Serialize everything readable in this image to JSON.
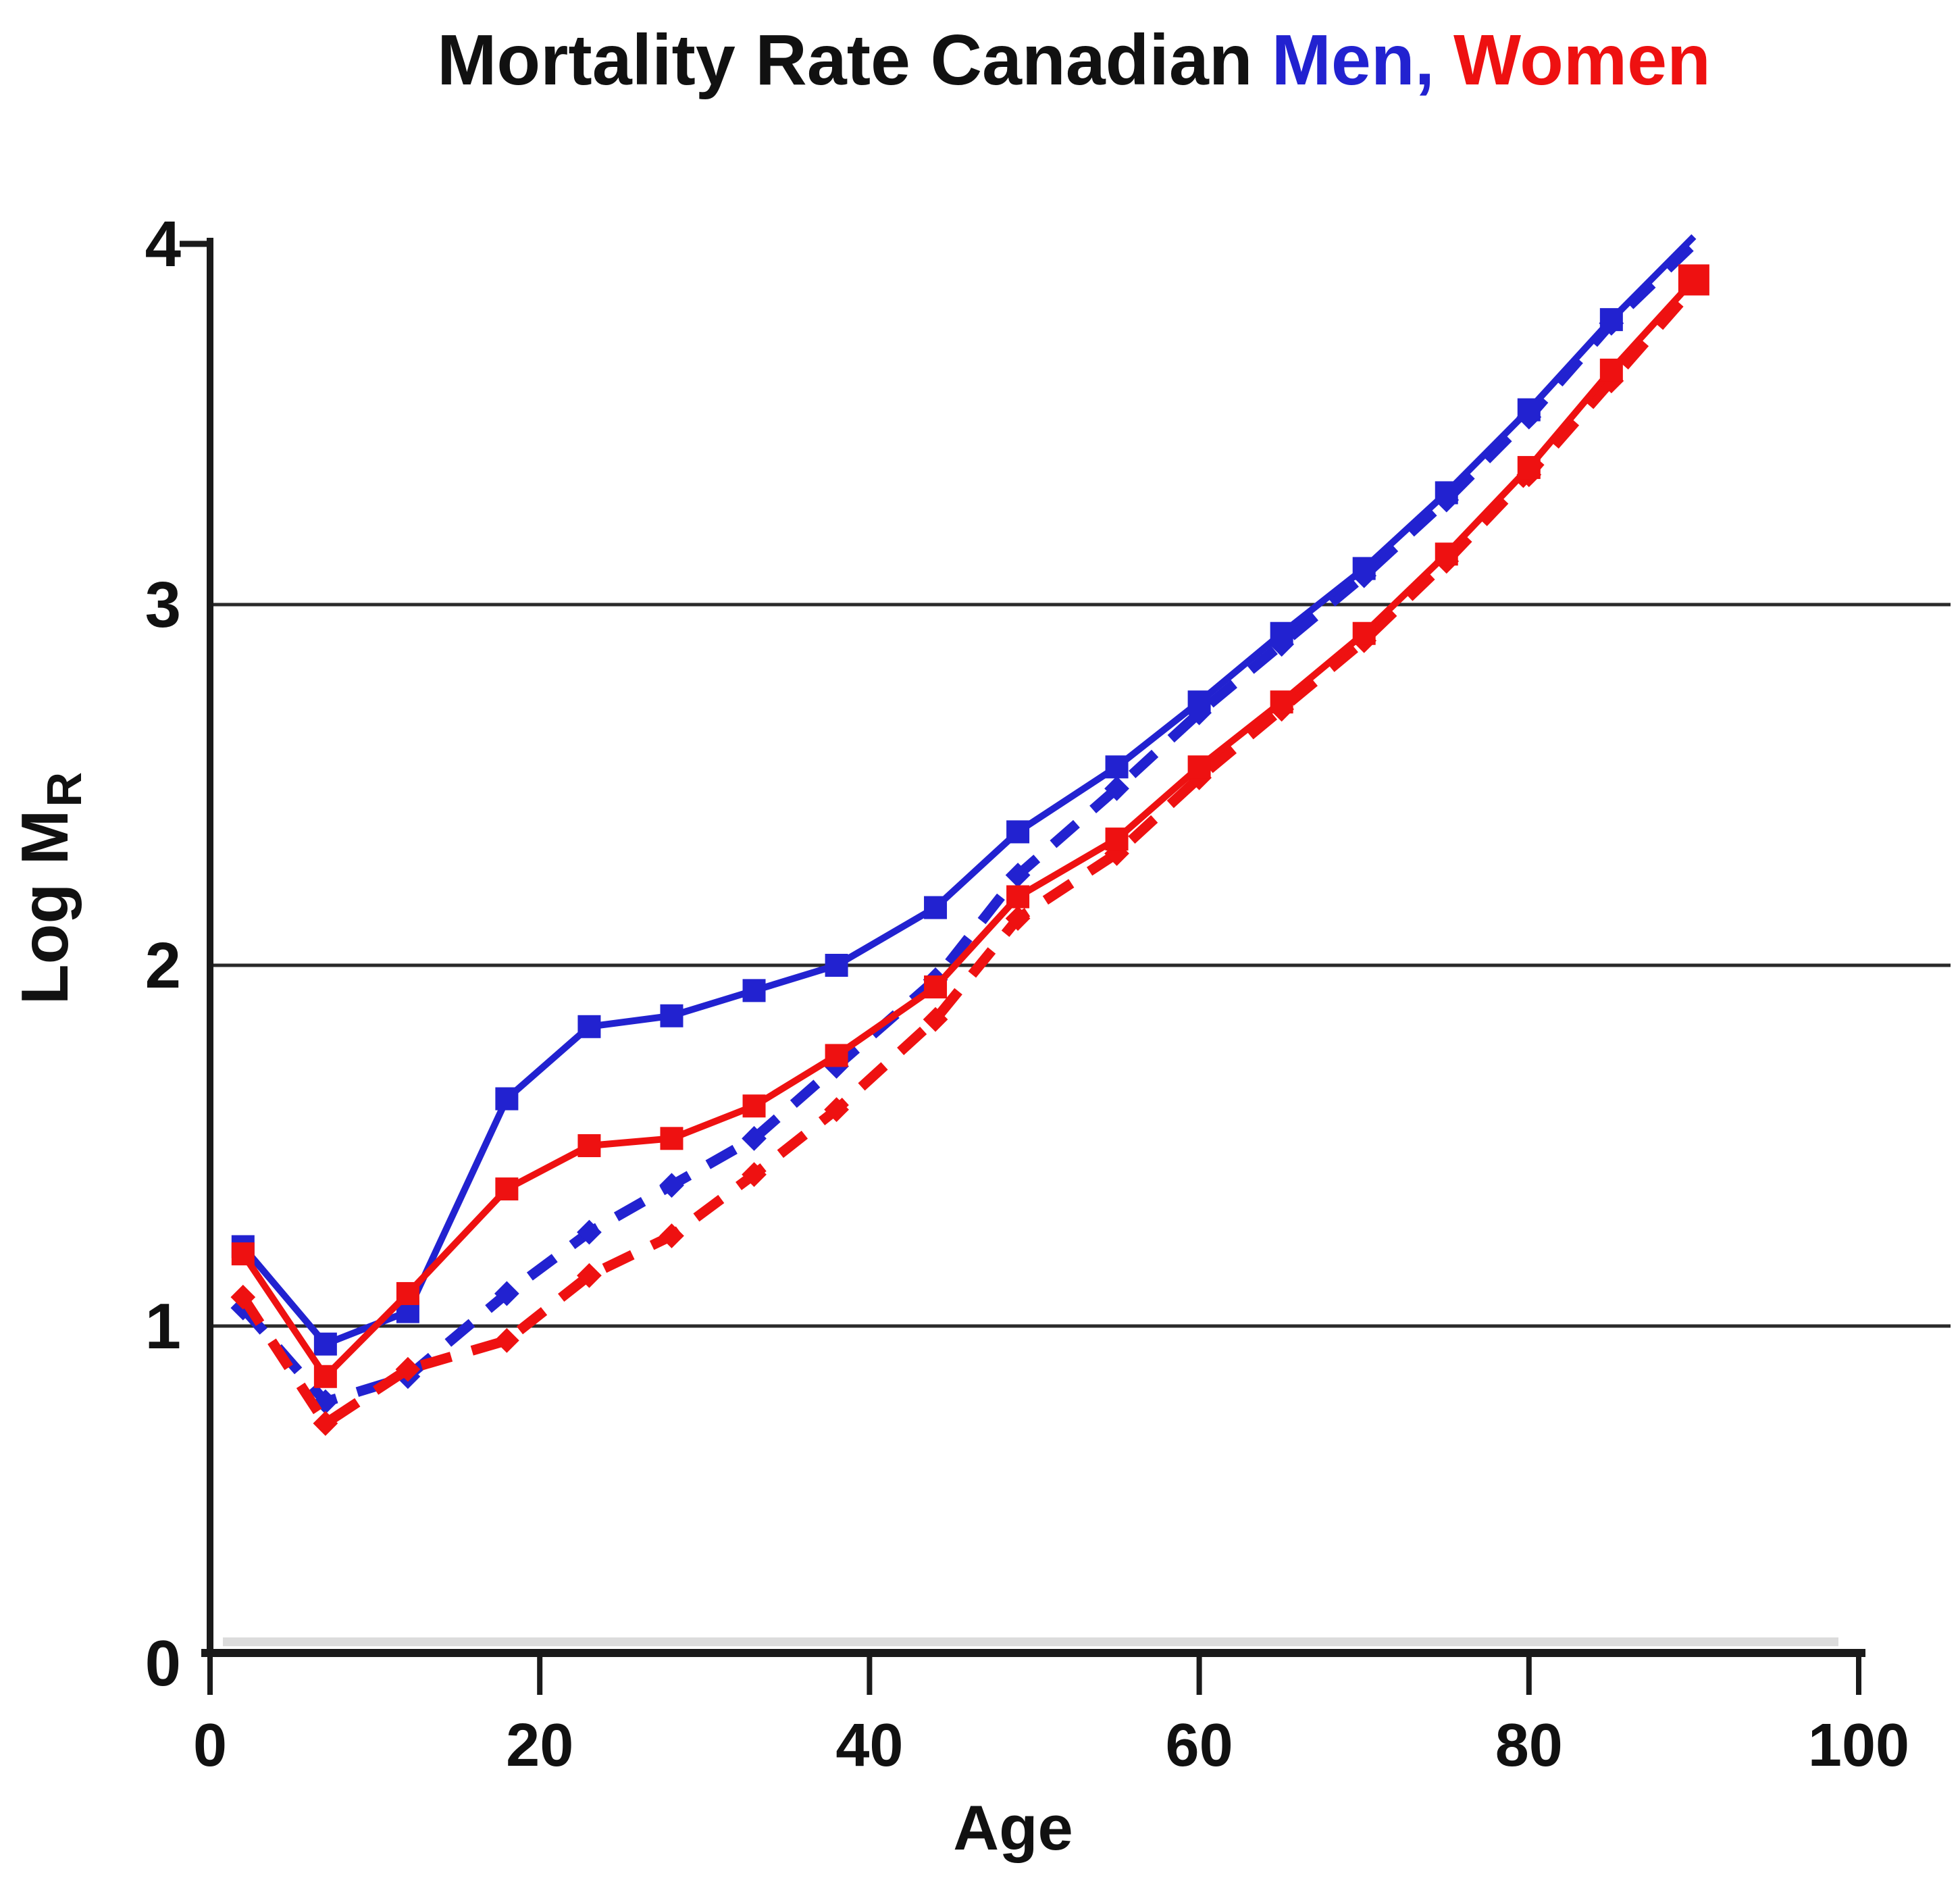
{
  "title": {
    "black": "Mortality Rate Canadian",
    "men": "Men,",
    "women": "Women"
  },
  "axes": {
    "x_label": "Age",
    "y_label_main": "Log M",
    "y_label_sub": "R"
  },
  "colors": {
    "men_blue": "#2222d0",
    "women_red": "#ee1111",
    "axis_black": "#1a1a1a",
    "grid": "#2a2a2a",
    "axis_shadow": "#c9c9c9",
    "background": "#ffffff",
    "text": "#111111"
  },
  "chart_data": {
    "type": "line",
    "title": "Mortality Rate Canadian Men, Women",
    "xlabel": "Age",
    "ylabel": "Log MR (log of mortality rate)",
    "xlim": [
      0,
      100
    ],
    "ylim": [
      0,
      4
    ],
    "x_ticks": [
      0,
      20,
      40,
      60,
      80,
      100
    ],
    "y_ticks": [
      0,
      1,
      2,
      3,
      4
    ],
    "gridlines_at": [
      1,
      2,
      3
    ],
    "grid": "horizontal gridlines at y=1,2,3",
    "legend_position": "none (series identified by title colors: Men = blue, Women = red)",
    "x": [
      2,
      7,
      12,
      18,
      23,
      28,
      33,
      38,
      44,
      49,
      55,
      60,
      65,
      70,
      75,
      80,
      85,
      90
    ],
    "series": [
      {
        "name": "Men - solid line (blue, square markers)",
        "color": "#2222d0",
        "style": "solid",
        "marker": "square",
        "marker_size": 34,
        "skip_last_marker": true,
        "end_marker_size": 34,
        "values": [
          1.22,
          0.95,
          1.04,
          1.63,
          1.83,
          1.86,
          1.93,
          2.0,
          2.16,
          2.37,
          2.55,
          2.73,
          2.92,
          3.1,
          3.31,
          3.54,
          3.79,
          4.02
        ]
      },
      {
        "name": "Women - solid line (red, square markers)",
        "color": "#ee1111",
        "style": "solid",
        "marker": "square",
        "marker_size": 34,
        "skip_last_marker": false,
        "end_marker_size": 46,
        "values": [
          1.2,
          0.86,
          1.09,
          1.38,
          1.5,
          1.52,
          1.61,
          1.75,
          1.94,
          2.19,
          2.35,
          2.55,
          2.73,
          2.92,
          3.14,
          3.38,
          3.65,
          3.9
        ]
      },
      {
        "name": "Men - dashed line (blue)",
        "color": "#2222d0",
        "style": "dashed",
        "marker": "diamond",
        "marker_size": 26,
        "skip_last_marker": true,
        "end_marker_size": 26,
        "values": [
          1.05,
          0.79,
          0.86,
          1.09,
          1.26,
          1.39,
          1.52,
          1.72,
          1.96,
          2.25,
          2.49,
          2.7,
          2.89,
          3.08,
          3.29,
          3.52,
          3.78,
          4.0
        ]
      },
      {
        "name": "Women - dashed line (red)",
        "color": "#ee1111",
        "style": "dashed",
        "marker": "diamond",
        "marker_size": 26,
        "skip_last_marker": true,
        "end_marker_size": 26,
        "values": [
          1.08,
          0.73,
          0.88,
          0.96,
          1.14,
          1.25,
          1.42,
          1.6,
          1.85,
          2.13,
          2.31,
          2.52,
          2.71,
          2.9,
          3.12,
          3.36,
          3.62,
          3.88
        ]
      }
    ]
  }
}
